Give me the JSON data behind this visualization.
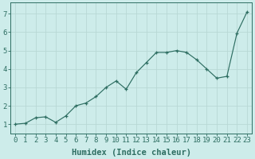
{
  "x": [
    0,
    1,
    2,
    3,
    4,
    5,
    6,
    7,
    8,
    9,
    10,
    11,
    12,
    13,
    14,
    15,
    16,
    17,
    18,
    19,
    20,
    21,
    22,
    23
  ],
  "y": [
    1.0,
    1.05,
    1.35,
    1.4,
    1.1,
    1.45,
    2.0,
    2.15,
    2.5,
    3.0,
    3.35,
    2.9,
    3.8,
    4.35,
    4.9,
    4.9,
    5.0,
    4.9,
    4.5,
    4.0,
    3.5,
    3.6,
    5.95,
    7.1
  ],
  "xlabel": "Humidex (Indice chaleur)",
  "xlim": [
    -0.5,
    23.5
  ],
  "ylim": [
    0.5,
    7.6
  ],
  "yticks": [
    1,
    2,
    3,
    4,
    5,
    6,
    7
  ],
  "xticks": [
    0,
    1,
    2,
    3,
    4,
    5,
    6,
    7,
    8,
    9,
    10,
    11,
    12,
    13,
    14,
    15,
    16,
    17,
    18,
    19,
    20,
    21,
    22,
    23
  ],
  "line_color": "#2e6e62",
  "marker": "+",
  "bg_color": "#cdecea",
  "grid_color": "#b8d8d5",
  "axes_color": "#2e6e62",
  "tick_label_color": "#2e6e62",
  "label_color": "#2e6e62",
  "font_size": 6.5,
  "label_font_size": 7.5
}
